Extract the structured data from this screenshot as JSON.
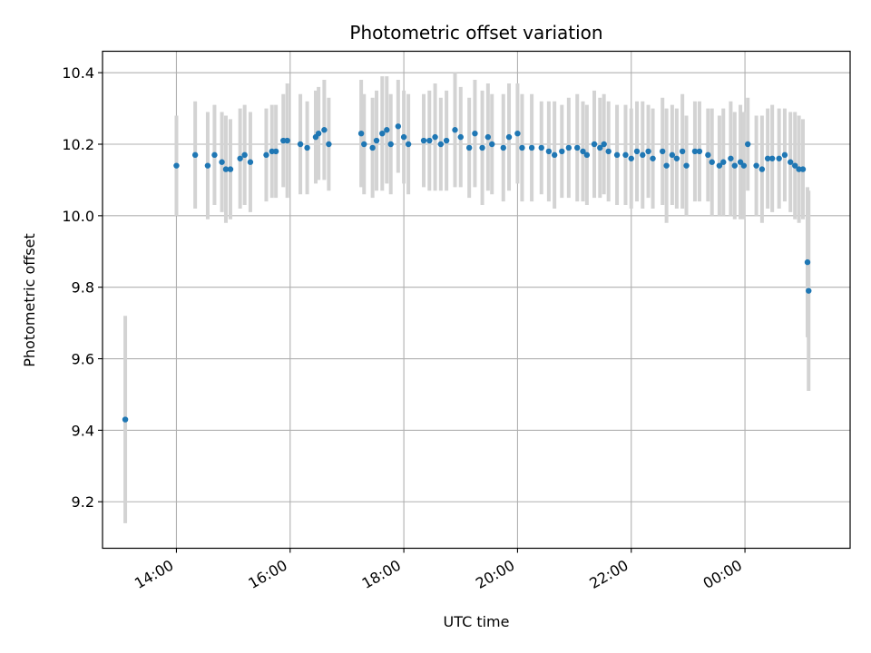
{
  "chart_data": {
    "type": "scatter",
    "title": "Photometric offset variation",
    "xlabel": "UTC time",
    "ylabel": "Photometric offset",
    "x_unit": "hours since 00:00 on first day",
    "xlim": [
      12.7,
      25.85
    ],
    "ylim": [
      9.07,
      10.46
    ],
    "grid": true,
    "point_color": "#1f77b4",
    "errorbar_color": "#d3d3d3",
    "x_ticks": [
      {
        "value": 14,
        "label": "14:00"
      },
      {
        "value": 16,
        "label": "16:00"
      },
      {
        "value": 18,
        "label": "18:00"
      },
      {
        "value": 20,
        "label": "20:00"
      },
      {
        "value": 22,
        "label": "22:00"
      },
      {
        "value": 24,
        "label": "00:00"
      }
    ],
    "y_ticks": [
      {
        "value": 9.2,
        "label": "9.2"
      },
      {
        "value": 9.4,
        "label": "9.4"
      },
      {
        "value": 9.6,
        "label": "9.6"
      },
      {
        "value": 9.8,
        "label": "9.8"
      },
      {
        "value": 10.0,
        "label": "10.0"
      },
      {
        "value": 10.2,
        "label": "10.2"
      },
      {
        "value": 10.4,
        "label": "10.4"
      }
    ],
    "series": [
      {
        "name": "offset",
        "points": [
          [
            13.1,
            9.43,
            0.29
          ],
          [
            14.0,
            10.14,
            0.14
          ],
          [
            14.33,
            10.17,
            0.15
          ],
          [
            14.55,
            10.14,
            0.15
          ],
          [
            14.67,
            10.17,
            0.14
          ],
          [
            14.8,
            10.15,
            0.14
          ],
          [
            14.87,
            10.13,
            0.15
          ],
          [
            14.95,
            10.13,
            0.14
          ],
          [
            15.12,
            10.16,
            0.14
          ],
          [
            15.2,
            10.17,
            0.14
          ],
          [
            15.3,
            10.15,
            0.14
          ],
          [
            15.58,
            10.17,
            0.13
          ],
          [
            15.68,
            10.18,
            0.13
          ],
          [
            15.75,
            10.18,
            0.13
          ],
          [
            15.88,
            10.21,
            0.13
          ],
          [
            15.95,
            10.21,
            0.16
          ],
          [
            16.18,
            10.2,
            0.14
          ],
          [
            16.3,
            10.19,
            0.13
          ],
          [
            16.45,
            10.22,
            0.13
          ],
          [
            16.5,
            10.23,
            0.13
          ],
          [
            16.6,
            10.24,
            0.14
          ],
          [
            16.68,
            10.2,
            0.13
          ],
          [
            17.25,
            10.23,
            0.15
          ],
          [
            17.3,
            10.2,
            0.14
          ],
          [
            17.45,
            10.19,
            0.14
          ],
          [
            17.52,
            10.21,
            0.14
          ],
          [
            17.62,
            10.23,
            0.16
          ],
          [
            17.7,
            10.24,
            0.15
          ],
          [
            17.77,
            10.2,
            0.14
          ],
          [
            17.9,
            10.25,
            0.13
          ],
          [
            18.0,
            10.22,
            0.13
          ],
          [
            18.08,
            10.2,
            0.14
          ],
          [
            18.35,
            10.21,
            0.13
          ],
          [
            18.45,
            10.21,
            0.14
          ],
          [
            18.55,
            10.22,
            0.15
          ],
          [
            18.65,
            10.2,
            0.13
          ],
          [
            18.75,
            10.21,
            0.14
          ],
          [
            18.9,
            10.24,
            0.16
          ],
          [
            19.0,
            10.22,
            0.14
          ],
          [
            19.15,
            10.19,
            0.14
          ],
          [
            19.25,
            10.23,
            0.15
          ],
          [
            19.38,
            10.19,
            0.16
          ],
          [
            19.48,
            10.22,
            0.15
          ],
          [
            19.55,
            10.2,
            0.14
          ],
          [
            19.75,
            10.19,
            0.15
          ],
          [
            19.85,
            10.22,
            0.15
          ],
          [
            20.0,
            10.23,
            0.14
          ],
          [
            20.08,
            10.19,
            0.15
          ],
          [
            20.25,
            10.19,
            0.15
          ],
          [
            20.42,
            10.19,
            0.13
          ],
          [
            20.55,
            10.18,
            0.14
          ],
          [
            20.65,
            10.17,
            0.15
          ],
          [
            20.78,
            10.18,
            0.13
          ],
          [
            20.9,
            10.19,
            0.14
          ],
          [
            21.05,
            10.19,
            0.15
          ],
          [
            21.15,
            10.18,
            0.14
          ],
          [
            21.22,
            10.17,
            0.14
          ],
          [
            21.35,
            10.2,
            0.15
          ],
          [
            21.45,
            10.19,
            0.14
          ],
          [
            21.52,
            10.2,
            0.14
          ],
          [
            21.6,
            10.18,
            0.14
          ],
          [
            21.75,
            10.17,
            0.14
          ],
          [
            21.9,
            10.17,
            0.14
          ],
          [
            22.0,
            10.16,
            0.14
          ],
          [
            22.1,
            10.18,
            0.14
          ],
          [
            22.2,
            10.17,
            0.15
          ],
          [
            22.3,
            10.18,
            0.13
          ],
          [
            22.38,
            10.16,
            0.14
          ],
          [
            22.55,
            10.18,
            0.15
          ],
          [
            22.62,
            10.14,
            0.16
          ],
          [
            22.72,
            10.17,
            0.14
          ],
          [
            22.8,
            10.16,
            0.14
          ],
          [
            22.9,
            10.18,
            0.16
          ],
          [
            22.97,
            10.14,
            0.14
          ],
          [
            23.12,
            10.18,
            0.14
          ],
          [
            23.2,
            10.18,
            0.14
          ],
          [
            23.35,
            10.17,
            0.13
          ],
          [
            23.42,
            10.15,
            0.15
          ],
          [
            23.55,
            10.14,
            0.14
          ],
          [
            23.62,
            10.15,
            0.15
          ],
          [
            23.75,
            10.16,
            0.16
          ],
          [
            23.82,
            10.14,
            0.15
          ],
          [
            23.92,
            10.15,
            0.16
          ],
          [
            23.98,
            10.14,
            0.15
          ],
          [
            24.05,
            10.2,
            0.13
          ],
          [
            24.2,
            10.14,
            0.14
          ],
          [
            24.3,
            10.13,
            0.15
          ],
          [
            24.4,
            10.16,
            0.14
          ],
          [
            24.48,
            10.16,
            0.15
          ],
          [
            24.6,
            10.16,
            0.14
          ],
          [
            24.7,
            10.17,
            0.13
          ],
          [
            24.8,
            10.15,
            0.14
          ],
          [
            24.88,
            10.14,
            0.15
          ],
          [
            24.95,
            10.13,
            0.15
          ],
          [
            25.02,
            10.13,
            0.14
          ],
          [
            25.1,
            9.87,
            0.21
          ],
          [
            25.12,
            9.79,
            0.28
          ]
        ]
      }
    ]
  }
}
